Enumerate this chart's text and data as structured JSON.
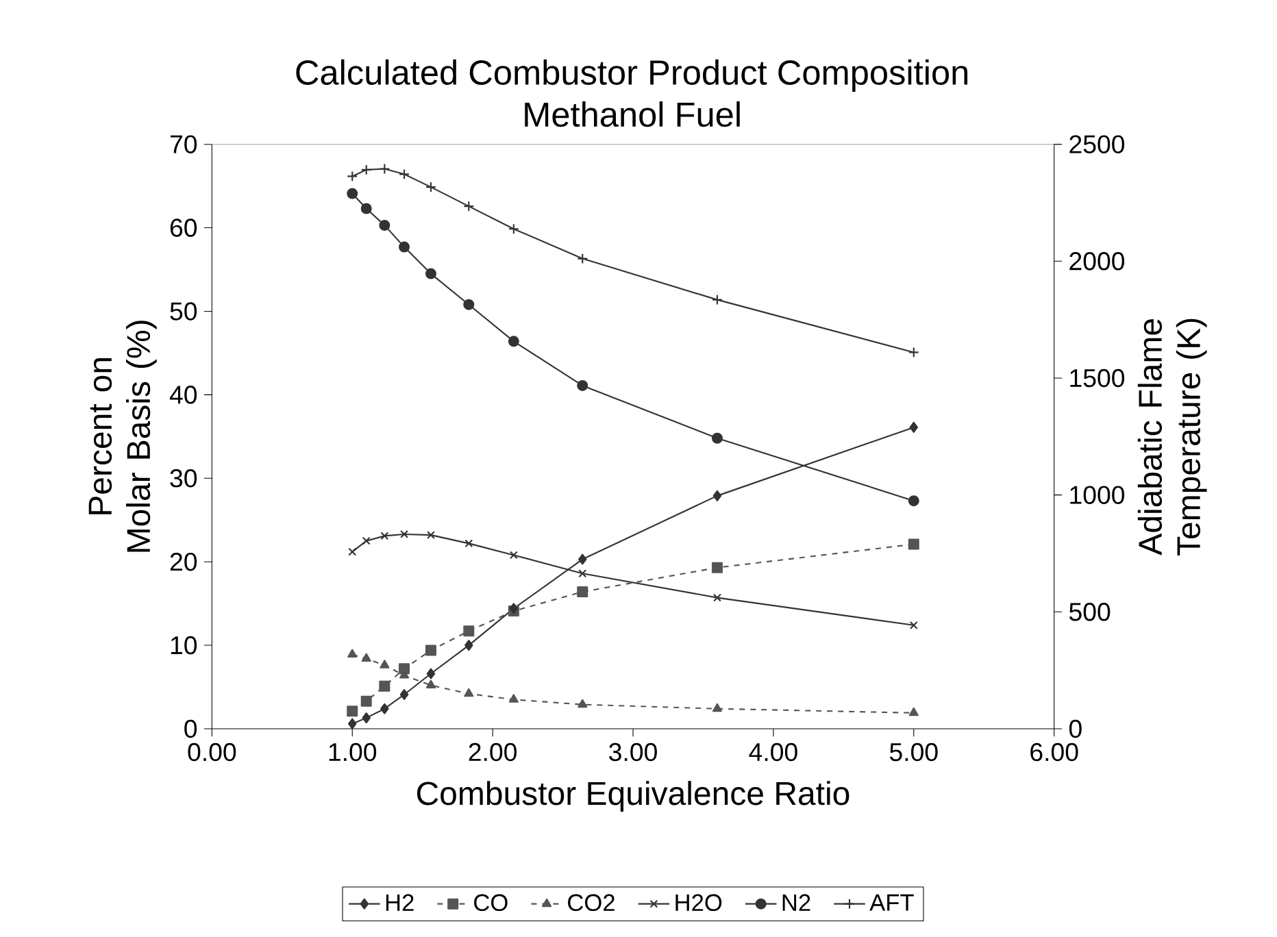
{
  "chart_data": {
    "type": "line",
    "title": "Calculated Combustor Product Composition",
    "subtitle": "Methanol Fuel",
    "xlabel": "Combustor Equivalence Ratio",
    "ylabel": "Percent on Molar Basis (%)",
    "y2label": "Adiabatic Flame Temperature (K)",
    "x": [
      1.0,
      1.1,
      1.23,
      1.37,
      1.56,
      1.83,
      2.15,
      2.64,
      3.6,
      5.0
    ],
    "series": [
      {
        "name": "H2",
        "color": "#333333",
        "marker": "diamond",
        "line_style": "solid",
        "values": [
          0.6,
          1.3,
          2.4,
          4.1,
          6.6,
          10.0,
          14.4,
          20.3,
          27.9,
          36.1
        ]
      },
      {
        "name": "CO",
        "color": "#555555",
        "marker": "square",
        "line_style": "dashed",
        "values": [
          2.1,
          3.3,
          5.1,
          7.2,
          9.4,
          11.7,
          14.1,
          16.4,
          19.3,
          22.1
        ]
      },
      {
        "name": "CO2",
        "color": "#555555",
        "marker": "triangle",
        "line_style": "dashed",
        "values": [
          8.9,
          8.4,
          7.6,
          6.4,
          5.2,
          4.2,
          3.5,
          2.9,
          2.4,
          1.9
        ]
      },
      {
        "name": "H2O",
        "color": "#333333",
        "marker": "cross",
        "line_style": "solid",
        "values": [
          21.2,
          22.5,
          23.1,
          23.3,
          23.2,
          22.2,
          20.8,
          18.6,
          15.7,
          12.4
        ]
      },
      {
        "name": "N2",
        "color": "#333333",
        "marker": "circle",
        "line_style": "solid",
        "values": [
          64.1,
          62.3,
          60.3,
          57.7,
          54.5,
          50.8,
          46.4,
          41.1,
          34.8,
          27.3
        ]
      },
      {
        "name": "AFT",
        "color": "#333333",
        "marker": "cross",
        "line_style": "solid",
        "axis": "y2",
        "values": [
          2363,
          2391,
          2395,
          2372,
          2317,
          2235,
          2138,
          2011,
          1835,
          1610
        ]
      }
    ],
    "xlim": [
      0,
      6
    ],
    "xticks": [
      {
        "value": 0,
        "label": "0.00"
      },
      {
        "value": 1,
        "label": "1.00"
      },
      {
        "value": 2,
        "label": "2.00"
      },
      {
        "value": 3,
        "label": "3.00"
      },
      {
        "value": 4,
        "label": "4.00"
      },
      {
        "value": 5,
        "label": "5.00"
      },
      {
        "value": 6,
        "label": "6.00"
      }
    ],
    "ylim": [
      0,
      70
    ],
    "yticks": [
      0,
      10,
      20,
      30,
      40,
      50,
      60,
      70
    ],
    "y2lim": [
      0,
      2500
    ],
    "y2ticks": [
      0,
      500,
      1000,
      1500,
      2000,
      2500
    ],
    "grid": false,
    "legend": "bottom"
  }
}
